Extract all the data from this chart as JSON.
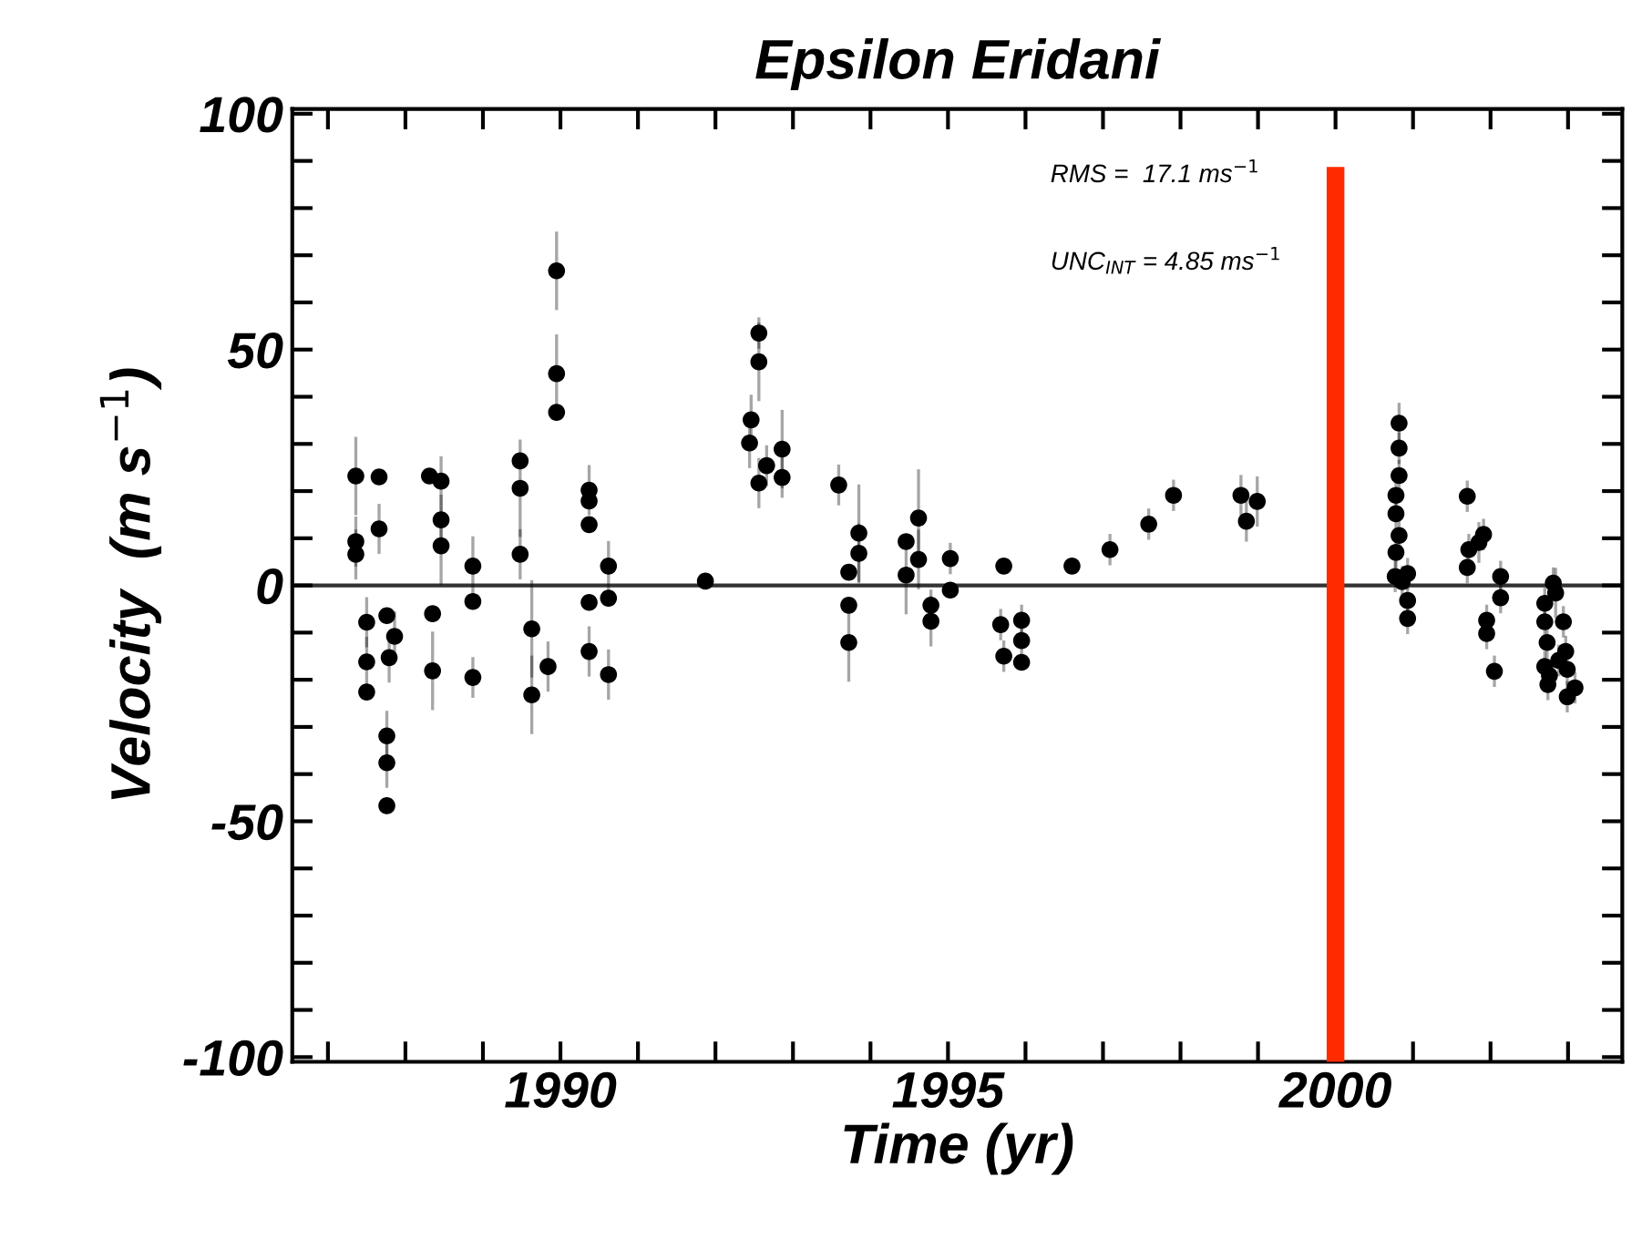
{
  "chart_data": {
    "type": "scatter",
    "title": "Epsilon Eridani",
    "xlabel": "Time (yr)",
    "ylabel": "Velocity  (m s$^{−1}$)",
    "annotations": [
      "RMS =  17.1 ms$^{−1}$",
      "UNC$_{INT}$ = 4.85 ms$^{−1}$"
    ],
    "series": [
      {
        "color": "#000000",
        "x": [
          1987.36,
          1987.36,
          1987.36,
          1987.66,
          1987.66,
          1987.5,
          1987.5,
          1987.5,
          1987.76,
          1987.86,
          1987.79,
          1987.76,
          1987.76,
          1987.76,
          1988.31,
          1988.46,
          1988.46,
          1988.46,
          1988.35,
          1988.35,
          1988.87,
          1988.87,
          1988.87,
          1989.48,
          1989.48,
          1989.48,
          1989.63,
          1989.63,
          1989.84,
          1989.95,
          1989.95,
          1989.95,
          1990.37,
          1990.37,
          1990.37,
          1990.37,
          1990.37,
          1990.62,
          1990.62,
          1990.62,
          1991.87,
          1992.56,
          1992.56,
          1992.46,
          1992.44,
          1992.56,
          1992.86,
          1992.86,
          1992.66,
          1993.59,
          1993.85,
          1993.85,
          1993.72,
          1993.72,
          1993.72,
          1994.46,
          1994.46,
          1994.62,
          1994.62,
          1994.78,
          1994.78,
          1995.03,
          1995.03,
          1995.72,
          1995.68,
          1995.72,
          1995.95,
          1995.95,
          1995.95,
          1996.6,
          1997.09,
          1997.59,
          1997.91,
          1998.78,
          1998.85,
          1998.99,
          2000.82,
          2000.82,
          2000.82,
          2000.78,
          2000.78,
          2000.82,
          2000.78,
          2000.77,
          2000.86,
          2000.93,
          2000.93,
          2000.93,
          2001.7,
          2001.7,
          2001.72,
          2001.91,
          2001.85,
          2002.13,
          2002.13,
          2001.95,
          2001.95,
          2002.05,
          2002.81,
          2002.84,
          2002.7,
          2002.73,
          2002.94,
          2002.97,
          2002.7,
          2002.76,
          2002.99,
          2003.09,
          2002.99,
          2002.74,
          2002.88,
          2002.7
        ],
        "values": [
          23.2,
          9.3,
          6.6,
          23.0,
          12.0,
          -16.2,
          -7.8,
          -22.6,
          -6.4,
          -10.8,
          -15.3,
          -31.9,
          -37.6,
          -46.7,
          23.2,
          22.1,
          8.4,
          13.9,
          -6.0,
          -18.1,
          4.1,
          -3.4,
          -19.5,
          26.4,
          20.6,
          6.6,
          -9.2,
          -23.2,
          -17.2,
          44.9,
          66.7,
          36.7,
          12.9,
          20.2,
          17.9,
          -3.6,
          -14.0,
          -2.7,
          -18.9,
          4.1,
          0.9,
          53.5,
          47.4,
          35.1,
          30.2,
          21.7,
          28.9,
          22.9,
          25.4,
          21.3,
          11.1,
          6.8,
          -4.2,
          -12.1,
          2.8,
          9.3,
          2.2,
          14.3,
          5.5,
          -7.6,
          -4.2,
          -1.0,
          5.7,
          4.1,
          -8.3,
          -15.0,
          -11.7,
          -7.4,
          -16.3,
          4.1,
          7.6,
          13.0,
          19.1,
          19.1,
          13.6,
          17.8,
          34.4,
          29.1,
          23.3,
          19.1,
          15.2,
          10.6,
          7.0,
          1.9,
          0.8,
          2.5,
          -3.2,
          -7.0,
          18.9,
          3.8,
          7.6,
          10.8,
          9.1,
          1.9,
          -2.6,
          -7.4,
          -10.2,
          -18.2,
          0.5,
          -1.6,
          -7.7,
          -12.1,
          -7.7,
          -14.0,
          -17.2,
          -19.1,
          -17.8,
          -21.7,
          -23.6,
          -21.0,
          -15.9,
          -3.8
        ],
        "errors": [
          8,
          5,
          5,
          null,
          5,
          5,
          5,
          null,
          null,
          5,
          5,
          5,
          5,
          null,
          null,
          5,
          8,
          5,
          null,
          8,
          6,
          null,
          4,
          null,
          10,
          5,
          10,
          8,
          5,
          8,
          8,
          null,
          null,
          5,
          null,
          null,
          5,
          null,
          5,
          5,
          null,
          3,
          8,
          5,
          5,
          5,
          8,
          4,
          4,
          4,
          10,
          6,
          null,
          8,
          null,
          null,
          8,
          10,
          6,
          5,
          3,
          null,
          3,
          null,
          3,
          3,
          3,
          3,
          null,
          null,
          3,
          3,
          3,
          4,
          4,
          5,
          4,
          3,
          3,
          3,
          3,
          3,
          3,
          3,
          3,
          3,
          3,
          3,
          3,
          3,
          3,
          3,
          4,
          3,
          3,
          3,
          3,
          3,
          3,
          5,
          3,
          3,
          3,
          3,
          3,
          3,
          3,
          3,
          3,
          3,
          3,
          3
        ]
      }
    ],
    "xlim": [
      1986.54,
      2003.7
    ],
    "xticks": [
      {
        "value": 1987,
        "label": null
      },
      {
        "value": 1988,
        "label": null
      },
      {
        "value": 1989,
        "label": null
      },
      1990,
      {
        "value": 1991,
        "label": null
      },
      {
        "value": 1992,
        "label": null
      },
      {
        "value": 1993,
        "label": null
      },
      {
        "value": 1994,
        "label": null
      },
      1995,
      {
        "value": 1996,
        "label": null
      },
      {
        "value": 1997,
        "label": null
      },
      {
        "value": 1998,
        "label": null
      },
      {
        "value": 1999,
        "label": null
      },
      2000,
      {
        "value": 2001,
        "label": null
      },
      {
        "value": 2002,
        "label": null
      },
      {
        "value": 2003,
        "label": null
      }
    ],
    "ylim": [
      -101,
      101
    ],
    "yticks": [
      -100,
      {
        "value": -90,
        "label": null
      },
      {
        "value": -80,
        "label": null
      },
      {
        "value": -70,
        "label": null
      },
      {
        "value": -60,
        "label": null
      },
      -50,
      {
        "value": -40,
        "label": null
      },
      {
        "value": -30,
        "label": null
      },
      {
        "value": -20,
        "label": null
      },
      {
        "value": -10,
        "label": null
      },
      0,
      {
        "value": 10,
        "label": null
      },
      {
        "value": 20,
        "label": null
      },
      {
        "value": 30,
        "label": null
      },
      {
        "value": 40,
        "label": null
      },
      50,
      {
        "value": 60,
        "label": null
      },
      {
        "value": 70,
        "label": null
      },
      {
        "value": 80,
        "label": null
      },
      {
        "value": 90,
        "label": null
      },
      100
    ],
    "ref_lines": [
      {
        "axis": "y",
        "value": 0,
        "color": "#333333"
      },
      {
        "axis": "x",
        "value": 2000,
        "color": "#ff2a00"
      }
    ],
    "marker": "circle",
    "grid": false,
    "legend": false
  }
}
